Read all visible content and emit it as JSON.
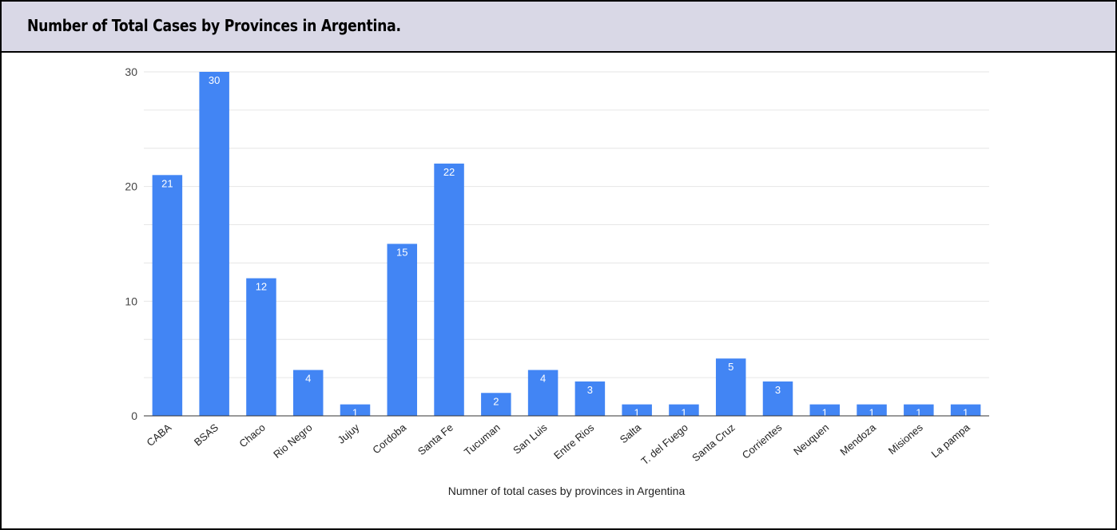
{
  "title": "Number of Total Cases by Provinces in Argentina.",
  "chart_data": {
    "type": "bar",
    "title": "Number of Total Cases by Provinces in Argentina.",
    "xlabel": "Numner of total cases by provinces in Argentina",
    "ylabel": "",
    "ylim": [
      0,
      30
    ],
    "yticks": [
      0,
      10,
      20,
      30
    ],
    "grid": true,
    "legend": "none",
    "bar_color": "#4285f4",
    "categories": [
      "CABA",
      "BSAS",
      "Chaco",
      "Rio Negro",
      "Jujuy",
      "Cordoba",
      "Santa Fe",
      "Tucuman",
      "San Luis",
      "Entre Rios",
      "Salta",
      "T. del Fuego",
      "Santa Cruz",
      "Corrientes",
      "Neuquen",
      "Mendoza",
      "Misiones",
      "La pampa"
    ],
    "values": [
      21,
      30,
      12,
      4,
      1,
      15,
      22,
      2,
      4,
      3,
      1,
      1,
      5,
      3,
      1,
      1,
      1,
      1
    ]
  }
}
